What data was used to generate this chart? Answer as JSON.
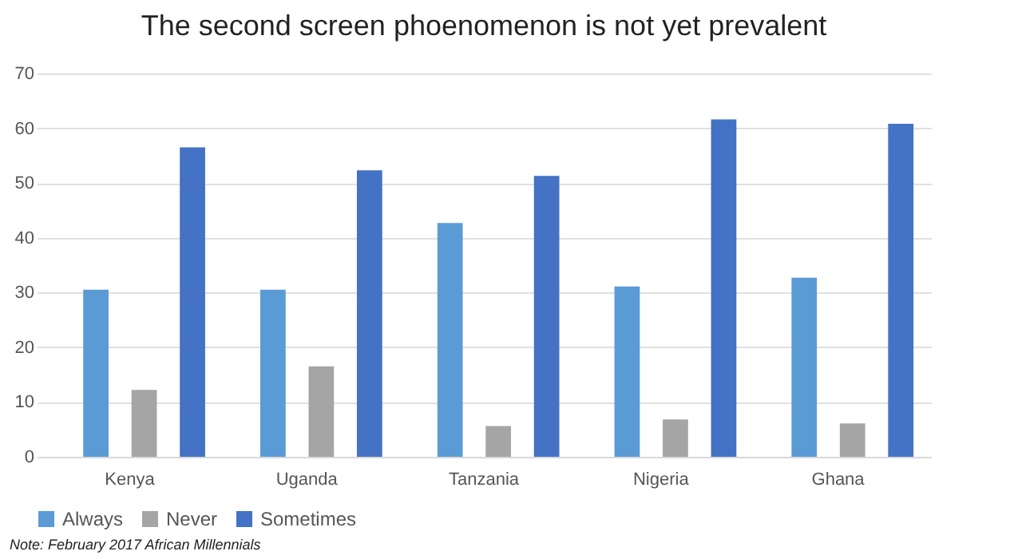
{
  "chart_data": {
    "type": "bar",
    "title": "The second screen phoenomenon is not yet prevalent",
    "categories": [
      "Kenya",
      "Uganda",
      "Tanzania",
      "Nigeria",
      "Ghana"
    ],
    "series": [
      {
        "name": "Always",
        "color": "#5b9bd5",
        "values": [
          30.5,
          30.5,
          42.7,
          31.1,
          32.7
        ]
      },
      {
        "name": "Never",
        "color": "#a5a5a5",
        "values": [
          12.2,
          16.5,
          5.6,
          6.8,
          6.1
        ]
      },
      {
        "name": "Sometimes",
        "color": "#4472c4",
        "values": [
          56.5,
          52.3,
          51.3,
          61.6,
          60.8
        ]
      }
    ],
    "ylim": [
      0,
      70
    ],
    "yticks": [
      0,
      10,
      20,
      30,
      40,
      50,
      60,
      70
    ],
    "grid": "y",
    "legend": "bottom",
    "annotations": [
      "Note: February 2017 African Millennials"
    ]
  }
}
